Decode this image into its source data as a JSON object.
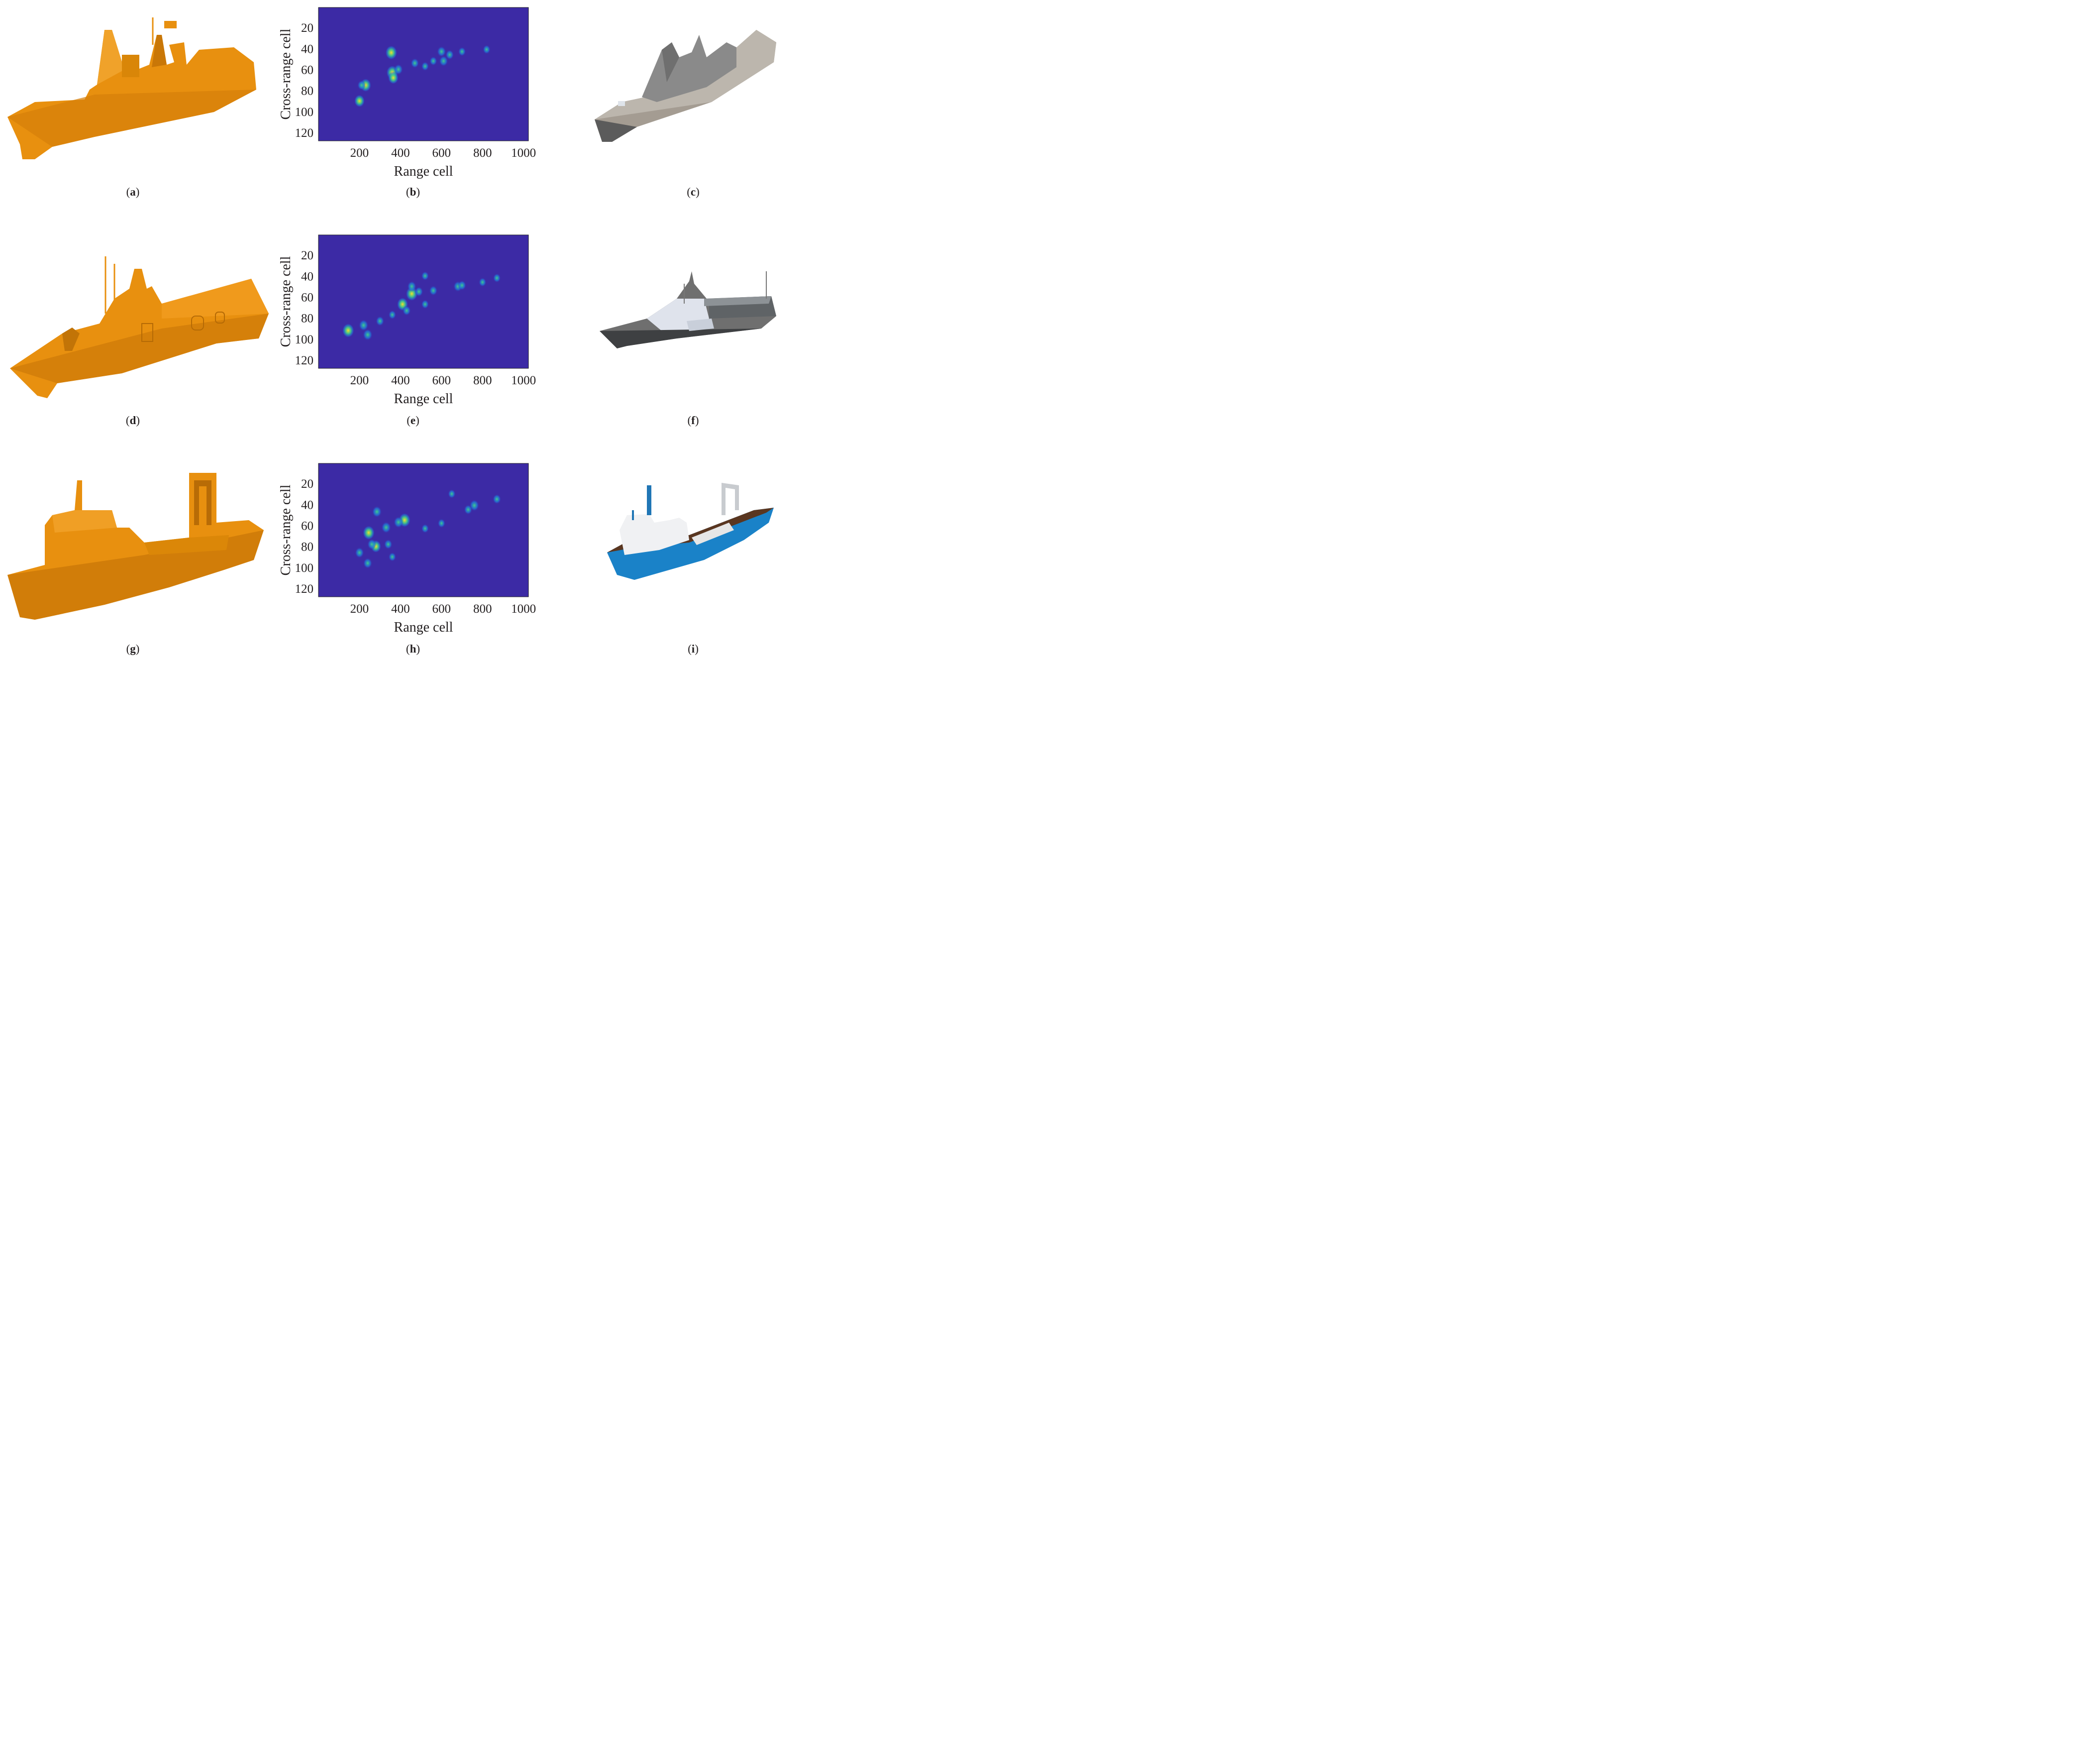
{
  "captions": [
    "a",
    "b",
    "c",
    "d",
    "e",
    "f",
    "g",
    "h",
    "i"
  ],
  "colors": {
    "cad_model": "#e8900f",
    "background_plot": "#3c2aa5",
    "scatter_core": "#f5e02a",
    "scatter_mid": "#3fd08a",
    "scatter_low": "#1e7bde",
    "render_gray": "#8a8a8a",
    "render_hull_blue": "#1a82c8"
  },
  "panels_row": [
    {
      "model": "ship-1 cad model",
      "render": "ship-1 render"
    },
    {
      "model": "ship-2 cad model",
      "render": "ship-2 render"
    },
    {
      "model": "ship-3 cad model",
      "render": "ship-3 render"
    }
  ],
  "chart_data": [
    {
      "type": "heatmap",
      "xlabel": "Range cell",
      "ylabel": "Cross-range cell",
      "xticks": [
        200,
        400,
        600,
        800,
        1000
      ],
      "yticks": [
        20,
        40,
        60,
        80,
        100,
        120
      ],
      "xlim": [
        0,
        1024
      ],
      "ylim": [
        128,
        1
      ],
      "y_reversed": true,
      "colormap": "parula",
      "points": [
        {
          "x": 355,
          "y": 44,
          "v": 1.0
        },
        {
          "x": 360,
          "y": 63,
          "v": 1.0
        },
        {
          "x": 365,
          "y": 68,
          "v": 0.8
        },
        {
          "x": 230,
          "y": 75,
          "v": 0.9
        },
        {
          "x": 200,
          "y": 90,
          "v": 0.8
        },
        {
          "x": 390,
          "y": 60,
          "v": 0.6
        },
        {
          "x": 470,
          "y": 54,
          "v": 0.5
        },
        {
          "x": 600,
          "y": 43,
          "v": 0.6
        },
        {
          "x": 610,
          "y": 52,
          "v": 0.6
        },
        {
          "x": 640,
          "y": 46,
          "v": 0.5
        },
        {
          "x": 700,
          "y": 43,
          "v": 0.4
        },
        {
          "x": 820,
          "y": 41,
          "v": 0.4
        },
        {
          "x": 520,
          "y": 57,
          "v": 0.4
        },
        {
          "x": 560,
          "y": 52,
          "v": 0.4
        },
        {
          "x": 210,
          "y": 75,
          "v": 0.5
        }
      ]
    },
    {
      "type": "heatmap",
      "xlabel": "Range cell",
      "ylabel": "Cross-range cell",
      "xticks": [
        200,
        400,
        600,
        800,
        1000
      ],
      "yticks": [
        20,
        40,
        60,
        80,
        100,
        120
      ],
      "xlim": [
        0,
        1024
      ],
      "ylim": [
        128,
        1
      ],
      "y_reversed": true,
      "colormap": "parula",
      "points": [
        {
          "x": 145,
          "y": 92,
          "v": 1.0
        },
        {
          "x": 220,
          "y": 87,
          "v": 0.7
        },
        {
          "x": 240,
          "y": 96,
          "v": 0.7
        },
        {
          "x": 410,
          "y": 67,
          "v": 0.9
        },
        {
          "x": 455,
          "y": 57,
          "v": 1.0
        },
        {
          "x": 455,
          "y": 50,
          "v": 0.6
        },
        {
          "x": 490,
          "y": 55,
          "v": 0.5
        },
        {
          "x": 560,
          "y": 54,
          "v": 0.5
        },
        {
          "x": 680,
          "y": 50,
          "v": 0.6
        },
        {
          "x": 700,
          "y": 49,
          "v": 0.5
        },
        {
          "x": 800,
          "y": 46,
          "v": 0.4
        },
        {
          "x": 870,
          "y": 42,
          "v": 0.4
        },
        {
          "x": 300,
          "y": 83,
          "v": 0.5
        },
        {
          "x": 430,
          "y": 73,
          "v": 0.5
        },
        {
          "x": 520,
          "y": 40,
          "v": 0.4
        },
        {
          "x": 360,
          "y": 77,
          "v": 0.4
        },
        {
          "x": 520,
          "y": 67,
          "v": 0.4
        }
      ]
    },
    {
      "type": "heatmap",
      "xlabel": "Range cell",
      "ylabel": "Cross-range cell",
      "xticks": [
        200,
        400,
        600,
        800,
        1000
      ],
      "yticks": [
        20,
        40,
        60,
        80,
        100,
        120
      ],
      "xlim": [
        0,
        1024
      ],
      "ylim": [
        128,
        1
      ],
      "y_reversed": true,
      "colormap": "parula",
      "points": [
        {
          "x": 245,
          "y": 67,
          "v": 1.0
        },
        {
          "x": 420,
          "y": 55,
          "v": 1.0
        },
        {
          "x": 285,
          "y": 47,
          "v": 0.7
        },
        {
          "x": 280,
          "y": 80,
          "v": 0.8
        },
        {
          "x": 330,
          "y": 62,
          "v": 0.7
        },
        {
          "x": 390,
          "y": 57,
          "v": 0.7
        },
        {
          "x": 200,
          "y": 86,
          "v": 0.6
        },
        {
          "x": 240,
          "y": 96,
          "v": 0.6
        },
        {
          "x": 260,
          "y": 78,
          "v": 0.6
        },
        {
          "x": 760,
          "y": 41,
          "v": 0.7
        },
        {
          "x": 730,
          "y": 45,
          "v": 0.5
        },
        {
          "x": 870,
          "y": 35,
          "v": 0.5
        },
        {
          "x": 650,
          "y": 30,
          "v": 0.4
        },
        {
          "x": 340,
          "y": 78,
          "v": 0.5
        },
        {
          "x": 520,
          "y": 63,
          "v": 0.4
        },
        {
          "x": 600,
          "y": 58,
          "v": 0.4
        },
        {
          "x": 360,
          "y": 90,
          "v": 0.4
        }
      ]
    }
  ]
}
